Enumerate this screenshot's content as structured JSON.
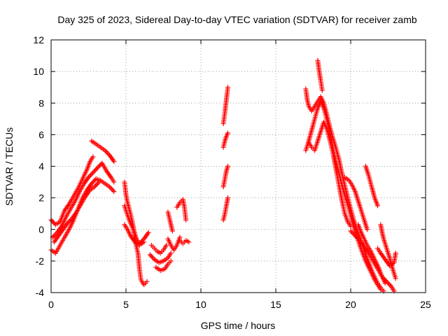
{
  "chart_data": {
    "type": "scatter",
    "title": "Day 325 of 2023, Sidereal Day-to-day VTEC variation (SDTVAR) for receiver zamb",
    "xlabel": "GPS time / hours",
    "ylabel": "SDTVAR / TECUs",
    "xlim": [
      0,
      25
    ],
    "ylim": [
      -4,
      12
    ],
    "xticks": [
      0,
      5,
      10,
      15,
      20,
      25
    ],
    "yticks": [
      -4,
      -2,
      0,
      2,
      4,
      6,
      8,
      10,
      12
    ],
    "grid": true,
    "marker": "+",
    "color": "#ff0000",
    "series": [
      {
        "name": "SDTVAR",
        "segments": [
          [
            [
              0.0,
              0.6
            ],
            [
              0.3,
              0.3
            ],
            [
              0.6,
              0.5
            ],
            [
              0.9,
              1.2
            ],
            [
              1.2,
              1.6
            ],
            [
              1.5,
              2.1
            ],
            [
              1.8,
              2.6
            ],
            [
              2.1,
              3.2
            ],
            [
              2.4,
              3.8
            ],
            [
              2.6,
              4.3
            ],
            [
              2.8,
              4.6
            ]
          ],
          [
            [
              0.1,
              -0.5
            ],
            [
              0.4,
              -0.2
            ],
            [
              0.7,
              0.2
            ],
            [
              1.0,
              0.8
            ],
            [
              1.3,
              1.3
            ],
            [
              1.6,
              1.8
            ],
            [
              1.9,
              2.4
            ],
            [
              2.2,
              2.9
            ],
            [
              2.5,
              3.3
            ],
            [
              2.8,
              3.6
            ],
            [
              3.1,
              3.9
            ],
            [
              3.4,
              4.2
            ],
            [
              3.7,
              3.7
            ],
            [
              4.0,
              3.3
            ],
            [
              4.2,
              3.0
            ]
          ],
          [
            [
              0.0,
              -1.3
            ],
            [
              0.3,
              -1.5
            ],
            [
              0.6,
              -1.0
            ],
            [
              0.9,
              -0.5
            ],
            [
              1.2,
              0.0
            ],
            [
              1.5,
              0.6
            ],
            [
              1.8,
              1.3
            ],
            [
              2.1,
              2.0
            ],
            [
              2.4,
              2.5
            ],
            [
              2.7,
              2.9
            ],
            [
              3.0,
              3.2
            ],
            [
              3.3,
              3.1
            ],
            [
              3.6,
              2.9
            ],
            [
              3.9,
              2.7
            ],
            [
              4.2,
              2.4
            ]
          ],
          [
            [
              0.2,
              -0.8
            ],
            [
              0.5,
              -0.4
            ],
            [
              0.8,
              0.0
            ],
            [
              1.1,
              0.4
            ],
            [
              1.4,
              0.7
            ],
            [
              1.7,
              1.1
            ],
            [
              2.0,
              1.6
            ],
            [
              2.3,
              2.1
            ],
            [
              2.6,
              2.5
            ],
            [
              2.9,
              2.7
            ],
            [
              3.2,
              3.0
            ]
          ],
          [
            [
              2.7,
              5.6
            ],
            [
              3.0,
              5.4
            ],
            [
              3.3,
              5.2
            ],
            [
              3.6,
              5.0
            ],
            [
              3.9,
              4.7
            ],
            [
              4.2,
              4.3
            ]
          ],
          [
            [
              4.9,
              3.0
            ],
            [
              5.0,
              2.2
            ],
            [
              5.1,
              1.7
            ],
            [
              5.3,
              1.0
            ],
            [
              5.5,
              0.1
            ],
            [
              5.6,
              -0.7
            ],
            [
              5.8,
              -1.5
            ],
            [
              5.9,
              -2.5
            ],
            [
              6.0,
              -3.2
            ],
            [
              6.2,
              -3.5
            ],
            [
              6.4,
              -3.3
            ]
          ],
          [
            [
              4.9,
              1.5
            ],
            [
              5.1,
              0.9
            ],
            [
              5.3,
              0.4
            ],
            [
              5.5,
              0.0
            ],
            [
              5.7,
              -0.6
            ],
            [
              5.9,
              -0.9
            ],
            [
              6.2,
              -0.6
            ],
            [
              6.5,
              -0.2
            ]
          ],
          [
            [
              4.9,
              0.3
            ],
            [
              5.1,
              0.0
            ],
            [
              5.3,
              -0.4
            ],
            [
              5.6,
              -0.8
            ],
            [
              5.9,
              -1.0
            ],
            [
              6.2,
              -0.8
            ]
          ],
          [
            [
              6.7,
              -1.0
            ],
            [
              6.9,
              -1.2
            ],
            [
              7.1,
              -1.4
            ],
            [
              7.3,
              -1.5
            ],
            [
              7.5,
              -1.3
            ],
            [
              7.7,
              -1.0
            ]
          ],
          [
            [
              6.6,
              -1.6
            ],
            [
              6.9,
              -1.9
            ],
            [
              7.2,
              -2.1
            ],
            [
              7.5,
              -2.0
            ],
            [
              7.8,
              -1.8
            ],
            [
              8.0,
              -1.5
            ]
          ],
          [
            [
              7.0,
              -2.4
            ],
            [
              7.3,
              -2.6
            ],
            [
              7.6,
              -2.5
            ],
            [
              7.8,
              -2.2
            ],
            [
              8.0,
              -2.0
            ]
          ],
          [
            [
              7.8,
              -0.6
            ],
            [
              8.0,
              -1.0
            ],
            [
              8.2,
              -1.3
            ],
            [
              8.4,
              -1.0
            ],
            [
              8.6,
              -0.5
            ]
          ],
          [
            [
              7.8,
              1.1
            ],
            [
              7.9,
              0.7
            ],
            [
              8.0,
              0.3
            ],
            [
              8.1,
              -0.1
            ]
          ],
          [
            [
              8.4,
              1.4
            ],
            [
              8.6,
              1.7
            ],
            [
              8.8,
              1.9
            ],
            [
              8.9,
              1.4
            ],
            [
              9.0,
              0.6
            ]
          ],
          [
            [
              8.6,
              -0.7
            ],
            [
              8.8,
              -0.9
            ],
            [
              9.0,
              -0.7
            ],
            [
              9.2,
              -0.8
            ]
          ],
          [
            [
              11.5,
              0.6
            ],
            [
              11.6,
              1.0
            ],
            [
              11.7,
              1.5
            ],
            [
              11.8,
              2.0
            ]
          ],
          [
            [
              11.5,
              2.7
            ],
            [
              11.6,
              3.2
            ],
            [
              11.7,
              3.7
            ],
            [
              11.8,
              4.0
            ]
          ],
          [
            [
              11.5,
              5.2
            ],
            [
              11.6,
              5.6
            ],
            [
              11.7,
              5.9
            ],
            [
              11.8,
              6.1
            ]
          ],
          [
            [
              11.5,
              6.7
            ],
            [
              11.6,
              7.4
            ],
            [
              11.7,
              8.2
            ],
            [
              11.8,
              9.0
            ]
          ],
          [
            [
              17.0,
              8.9
            ],
            [
              17.1,
              8.2
            ],
            [
              17.2,
              7.8
            ],
            [
              17.4,
              7.5
            ],
            [
              17.6,
              7.8
            ],
            [
              17.8,
              8.1
            ],
            [
              18.0,
              8.4
            ],
            [
              18.2,
              8.0
            ],
            [
              18.4,
              7.3
            ],
            [
              18.6,
              6.5
            ],
            [
              18.8,
              5.8
            ],
            [
              19.0,
              5.2
            ],
            [
              19.2,
              4.5
            ],
            [
              19.4,
              3.6
            ],
            [
              19.6,
              2.8
            ],
            [
              19.8,
              2.0
            ],
            [
              20.0,
              1.3
            ],
            [
              20.2,
              0.6
            ],
            [
              20.4,
              0.0
            ],
            [
              20.6,
              -0.5
            ],
            [
              20.8,
              -1.0
            ],
            [
              21.0,
              -1.6
            ],
            [
              21.2,
              -2.1
            ],
            [
              21.4,
              -2.6
            ],
            [
              21.6,
              -3.0
            ],
            [
              21.8,
              -3.4
            ],
            [
              22.0,
              -3.7
            ],
            [
              22.2,
              -3.9
            ]
          ],
          [
            [
              17.0,
              5.0
            ],
            [
              17.2,
              5.6
            ],
            [
              17.4,
              6.3
            ],
            [
              17.6,
              7.0
            ],
            [
              17.8,
              7.7
            ],
            [
              18.0,
              8.1
            ],
            [
              18.2,
              7.7
            ],
            [
              18.4,
              7.0
            ],
            [
              18.6,
              6.1
            ],
            [
              18.8,
              5.2
            ],
            [
              19.0,
              4.3
            ],
            [
              19.2,
              3.6
            ],
            [
              19.4,
              2.9
            ],
            [
              19.6,
              2.2
            ],
            [
              19.8,
              1.6
            ],
            [
              20.0,
              0.9
            ],
            [
              20.2,
              0.2
            ],
            [
              20.4,
              -0.4
            ],
            [
              20.6,
              -1.0
            ],
            [
              20.8,
              -1.5
            ],
            [
              21.0,
              -2.0
            ],
            [
              21.2,
              -2.4
            ],
            [
              21.4,
              -2.8
            ],
            [
              21.6,
              -3.2
            ],
            [
              21.8,
              -3.5
            ],
            [
              22.0,
              -3.8
            ]
          ],
          [
            [
              17.2,
              5.5
            ],
            [
              17.4,
              5.2
            ],
            [
              17.6,
              5.0
            ],
            [
              17.8,
              5.6
            ],
            [
              18.0,
              6.2
            ],
            [
              18.2,
              6.8
            ],
            [
              18.4,
              6.4
            ],
            [
              18.6,
              5.7
            ],
            [
              18.8,
              4.9
            ],
            [
              19.0,
              3.9
            ],
            [
              19.2,
              2.9
            ],
            [
              19.4,
              1.9
            ],
            [
              19.6,
              1.0
            ],
            [
              19.8,
              0.5
            ],
            [
              20.0,
              0.2
            ]
          ],
          [
            [
              17.8,
              10.7
            ],
            [
              17.9,
              10.0
            ],
            [
              18.0,
              9.4
            ],
            [
              18.1,
              8.8
            ]
          ],
          [
            [
              19.6,
              3.3
            ],
            [
              19.9,
              3.1
            ],
            [
              20.1,
              2.8
            ],
            [
              20.3,
              2.4
            ],
            [
              20.5,
              1.8
            ],
            [
              20.7,
              1.2
            ],
            [
              20.9,
              0.6
            ],
            [
              21.1,
              0.0
            ]
          ],
          [
            [
              20.5,
              0.3
            ],
            [
              20.7,
              -0.2
            ],
            [
              20.9,
              -0.6
            ],
            [
              21.1,
              -1.0
            ],
            [
              21.3,
              -1.3
            ],
            [
              21.5,
              -1.7
            ],
            [
              21.7,
              -2.1
            ],
            [
              21.9,
              -2.5
            ],
            [
              22.1,
              -3.0
            ],
            [
              22.3,
              -3.4
            ]
          ],
          [
            [
              21.0,
              4.0
            ],
            [
              21.2,
              3.4
            ],
            [
              21.4,
              2.7
            ],
            [
              21.6,
              2.0
            ],
            [
              21.8,
              1.5
            ]
          ],
          [
            [
              20.0,
              -0.1
            ],
            [
              20.3,
              -0.4
            ],
            [
              20.6,
              -0.7
            ],
            [
              20.9,
              -1.1
            ],
            [
              21.2,
              -1.5
            ],
            [
              21.5,
              -2.0
            ],
            [
              21.8,
              -2.5
            ],
            [
              22.1,
              -3.0
            ],
            [
              22.4,
              -3.3
            ],
            [
              22.7,
              -3.6
            ],
            [
              22.9,
              -3.9
            ]
          ],
          [
            [
              22.0,
              0.3
            ],
            [
              22.1,
              -0.2
            ],
            [
              22.2,
              -0.6
            ],
            [
              22.4,
              -1.2
            ],
            [
              22.6,
              -1.8
            ],
            [
              22.8,
              -2.5
            ],
            [
              23.0,
              -3.1
            ]
          ],
          [
            [
              21.8,
              -1.2
            ],
            [
              22.0,
              -1.5
            ],
            [
              22.3,
              -1.9
            ],
            [
              22.6,
              -2.3
            ],
            [
              22.9,
              -2.1
            ],
            [
              23.0,
              -1.5
            ]
          ]
        ]
      }
    ]
  }
}
